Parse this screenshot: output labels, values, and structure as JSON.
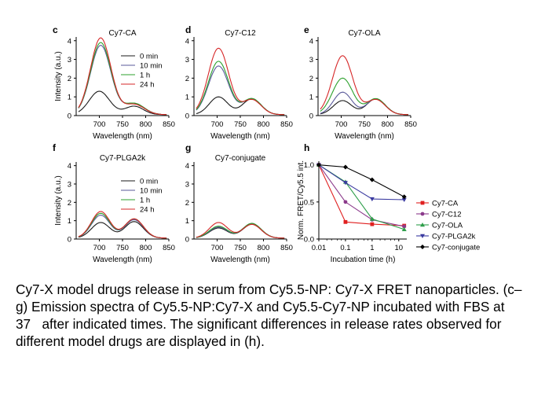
{
  "caption": "Cy7-X model drugs release in serum from Cy5.5-NP: Cy7-X FRET nanoparticles. (c–g) Emission spectra of Cy5.5-NP:Cy7-X and Cy5.5-Cy7-NP incubated with FBS at 37   after indicated times. The significant differences in release rates observed for different model drugs are displayed in (h).",
  "colors": {
    "0 min": "#1a1a1a",
    "10 min": "#5a5a9a",
    "1 h": "#2ca02c",
    "24 h": "#d62728",
    "Cy7-CA": "#e02020",
    "Cy7-C12": "#8b3a8b",
    "Cy7-OLA": "#2e9e4a",
    "Cy7-PLGA2k": "#3a3aa0",
    "Cy7-conjugate": "#000000"
  },
  "chart_data": [
    {
      "panel": "c",
      "type": "line",
      "title": "Cy7-CA",
      "xlabel": "Wavelength (nm)",
      "ylabel": "Intensity (a.u.)",
      "xlim": [
        650,
        850
      ],
      "ylim": [
        0,
        4.2
      ],
      "xticks": [
        700,
        750,
        800,
        850
      ],
      "yticks": [
        0,
        1,
        2,
        3,
        4
      ],
      "legend": [
        "0 min",
        "10 min",
        "1 h",
        "24 h"
      ],
      "series": [
        {
          "name": "0 min",
          "peaks": [
            [
              700,
              1.25,
              22
            ],
            [
              775,
              0.45,
              20
            ]
          ],
          "base": 0.05
        },
        {
          "name": "10 min",
          "peaks": [
            [
              703,
              3.7,
              22
            ],
            [
              775,
              0.6,
              22
            ]
          ],
          "base": 0.05
        },
        {
          "name": "1 h",
          "peaks": [
            [
              703,
              3.85,
              22
            ],
            [
              775,
              0.6,
              22
            ]
          ],
          "base": 0.05
        },
        {
          "name": "24 h",
          "peaks": [
            [
              703,
              4.1,
              22
            ],
            [
              775,
              0.55,
              22
            ]
          ],
          "base": 0.05
        }
      ]
    },
    {
      "panel": "d",
      "type": "line",
      "title": "Cy7-C12",
      "xlabel": "Wavelength (nm)",
      "ylabel": "",
      "xlim": [
        650,
        850
      ],
      "ylim": [
        0,
        4.2
      ],
      "xticks": [
        700,
        750,
        800,
        850
      ],
      "yticks": [
        0,
        1,
        2,
        3,
        4
      ],
      "series": [
        {
          "name": "0 min",
          "peaks": [
            [
              703,
              0.95,
              20
            ],
            [
              775,
              0.85,
              20
            ]
          ],
          "base": 0.05
        },
        {
          "name": "10 min",
          "peaks": [
            [
              703,
              2.6,
              22
            ],
            [
              775,
              0.85,
              20
            ]
          ],
          "base": 0.05
        },
        {
          "name": "1 h",
          "peaks": [
            [
              703,
              2.85,
              22
            ],
            [
              775,
              0.85,
              20
            ]
          ],
          "base": 0.05
        },
        {
          "name": "24 h",
          "peaks": [
            [
              703,
              3.55,
              22
            ],
            [
              775,
              0.8,
              20
            ]
          ],
          "base": 0.05
        }
      ]
    },
    {
      "panel": "e",
      "type": "line",
      "title": "Cy7-OLA",
      "xlabel": "Wavelength (nm)",
      "ylabel": "",
      "xlim": [
        650,
        850
      ],
      "ylim": [
        0,
        4.2
      ],
      "xticks": [
        700,
        750,
        800,
        850
      ],
      "yticks": [
        0,
        1,
        2,
        3,
        4
      ],
      "series": [
        {
          "name": "0 min",
          "peaks": [
            [
              703,
              0.75,
              20
            ],
            [
              775,
              0.85,
              20
            ]
          ],
          "base": 0.05
        },
        {
          "name": "10 min",
          "peaks": [
            [
              703,
              1.2,
              20
            ],
            [
              775,
              0.85,
              20
            ]
          ],
          "base": 0.05
        },
        {
          "name": "1 h",
          "peaks": [
            [
              703,
              1.95,
              22
            ],
            [
              775,
              0.85,
              20
            ]
          ],
          "base": 0.05
        },
        {
          "name": "24 h",
          "peaks": [
            [
              703,
              3.15,
              22
            ],
            [
              775,
              0.8,
              20
            ]
          ],
          "base": 0.05
        }
      ]
    },
    {
      "panel": "f",
      "type": "line",
      "title": "Cy7-PLGA2k",
      "xlabel": "Wavelength (nm)",
      "ylabel": "Intensity (a.u.)",
      "xlim": [
        650,
        850
      ],
      "ylim": [
        0,
        4.2
      ],
      "xticks": [
        700,
        750,
        800,
        850
      ],
      "yticks": [
        0,
        1,
        2,
        3,
        4
      ],
      "legend": [
        "0 min",
        "10 min",
        "1 h",
        "24 h"
      ],
      "series": [
        {
          "name": "0 min",
          "peaks": [
            [
              703,
              0.85,
              20
            ],
            [
              775,
              0.9,
              20
            ]
          ],
          "base": 0.05
        },
        {
          "name": "10 min",
          "peaks": [
            [
              703,
              1.25,
              20
            ],
            [
              775,
              1.0,
              20
            ]
          ],
          "base": 0.05
        },
        {
          "name": "1 h",
          "peaks": [
            [
              703,
              1.35,
              20
            ],
            [
              775,
              1.05,
              20
            ]
          ],
          "base": 0.05
        },
        {
          "name": "24 h",
          "peaks": [
            [
              703,
              1.45,
              20
            ],
            [
              775,
              1.05,
              20
            ]
          ],
          "base": 0.05
        }
      ]
    },
    {
      "panel": "g",
      "type": "line",
      "title": "Cy7-conjugate",
      "xlabel": "Wavelength (nm)",
      "ylabel": "",
      "xlim": [
        650,
        850
      ],
      "ylim": [
        0,
        4.2
      ],
      "xticks": [
        700,
        750,
        800,
        850
      ],
      "yticks": [
        0,
        1,
        2,
        3,
        4
      ],
      "series": [
        {
          "name": "0 min",
          "peaks": [
            [
              703,
              0.55,
              20
            ],
            [
              775,
              0.75,
              20
            ]
          ],
          "base": 0.05
        },
        {
          "name": "10 min",
          "peaks": [
            [
              703,
              0.6,
              20
            ],
            [
              775,
              0.8,
              20
            ]
          ],
          "base": 0.05
        },
        {
          "name": "1 h",
          "peaks": [
            [
              703,
              0.65,
              20
            ],
            [
              775,
              0.8,
              20
            ]
          ],
          "base": 0.05
        },
        {
          "name": "24 h",
          "peaks": [
            [
              703,
              0.85,
              20
            ],
            [
              775,
              0.75,
              20
            ]
          ],
          "base": 0.05
        }
      ]
    },
    {
      "panel": "h",
      "type": "line",
      "title": "",
      "xlabel": "Incubation time (h)",
      "ylabel": "Norm. FRET/Cy5.5 int.",
      "xscale": "log",
      "xlim": [
        0.01,
        20
      ],
      "ylim": [
        0,
        1.05
      ],
      "xticks": [
        0.01,
        0.1,
        1,
        10
      ],
      "xticklabels": [
        "0.01",
        "0.1",
        "1",
        "10"
      ],
      "yticks": [
        0.0,
        0.5,
        1.0
      ],
      "yticklabels": [
        "0.0",
        "0.5",
        "1.0"
      ],
      "legend": [
        "Cy7-CA",
        "Cy7-C12",
        "Cy7-OLA",
        "Cy7-PLGA2k",
        "Cy7-conjugate"
      ],
      "series": [
        {
          "name": "Cy7-CA",
          "marker": "square",
          "x": [
            0.01,
            0.1,
            1,
            16
          ],
          "y": [
            1.0,
            0.23,
            0.2,
            0.18
          ]
        },
        {
          "name": "Cy7-C12",
          "marker": "circle",
          "x": [
            0.01,
            0.1,
            1,
            16
          ],
          "y": [
            1.0,
            0.5,
            0.26,
            0.17
          ]
        },
        {
          "name": "Cy7-OLA",
          "marker": "triangle",
          "x": [
            0.01,
            0.1,
            1,
            16
          ],
          "y": [
            1.0,
            0.77,
            0.27,
            0.13
          ]
        },
        {
          "name": "Cy7-PLGA2k",
          "marker": "triangle-down",
          "x": [
            0.01,
            0.1,
            1,
            16
          ],
          "y": [
            1.0,
            0.76,
            0.54,
            0.53
          ]
        },
        {
          "name": "Cy7-conjugate",
          "marker": "diamond",
          "x": [
            0.01,
            0.1,
            1,
            16
          ],
          "y": [
            1.0,
            0.97,
            0.8,
            0.57
          ]
        }
      ]
    }
  ]
}
